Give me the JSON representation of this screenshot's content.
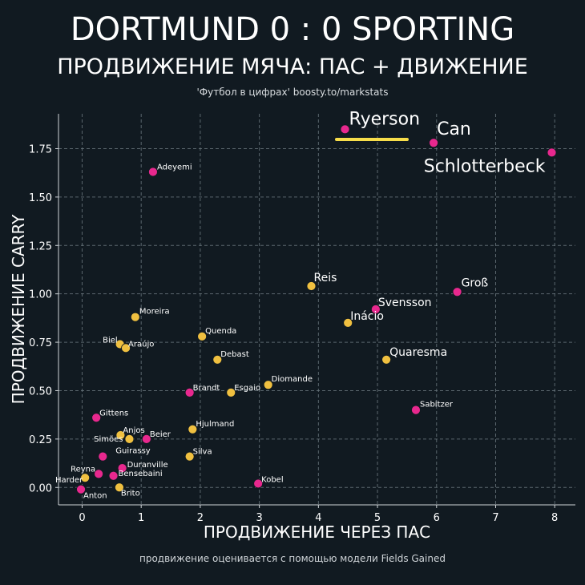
{
  "header": {
    "title": "DORTMUND 0 : 0 SPORTING",
    "subtitle": "ПРОДВИЖЕНИЕ МЯЧА: ПАС + ДВИЖЕНИЕ",
    "credit": "'Футбол в цифрах' boosty.to/markstats"
  },
  "footer": {
    "note": "продвижение оценивается с помощью модели Fields Gained"
  },
  "colors": {
    "background": "#111a21",
    "dortmund": "#f0c040",
    "sporting": "#e8288e",
    "grid": "#6d7a80",
    "highlight": "#f7dd4a"
  },
  "chart_data": {
    "type": "scatter",
    "xlabel": "ПРОДВИЖЕНИЕ ЧЕРЕЗ ПАС",
    "ylabel": "ПРОДВИЖЕНИЕ CARRY",
    "xlim": [
      -0.4,
      8.35
    ],
    "ylim": [
      -0.09,
      1.93
    ],
    "xticks": [
      0,
      1,
      2,
      3,
      4,
      5,
      6,
      7,
      8
    ],
    "yticks": [
      0.0,
      0.25,
      0.5,
      0.75,
      1.0,
      1.25,
      1.5,
      1.75
    ],
    "ytick_labels": [
      "0.00",
      "0.25",
      "0.50",
      "0.75",
      "1.00",
      "1.25",
      "1.50",
      "1.75"
    ],
    "grid": true,
    "points": [
      {
        "name": "Ryerson",
        "x": 4.45,
        "y": 1.85,
        "team": "sporting",
        "label_size": "large"
      },
      {
        "name": "Can",
        "x": 5.95,
        "y": 1.78,
        "team": "sporting",
        "label_size": "large"
      },
      {
        "name": "Schlotterbeck",
        "x": 7.95,
        "y": 1.73,
        "team": "sporting",
        "label_size": "large"
      },
      {
        "name": "Adeyemi",
        "x": 1.2,
        "y": 1.63,
        "team": "sporting",
        "label_size": "small"
      },
      {
        "name": "Reis",
        "x": 3.88,
        "y": 1.04,
        "team": "dortmund",
        "label_size": "medium"
      },
      {
        "name": "Groß",
        "x": 6.35,
        "y": 1.01,
        "team": "sporting",
        "label_size": "medium"
      },
      {
        "name": "Svensson",
        "x": 4.97,
        "y": 0.92,
        "team": "sporting",
        "label_size": "medium"
      },
      {
        "name": "Inácio",
        "x": 4.5,
        "y": 0.85,
        "team": "dortmund",
        "label_size": "medium"
      },
      {
        "name": "Quaresma",
        "x": 5.15,
        "y": 0.66,
        "team": "dortmund",
        "label_size": "medium"
      },
      {
        "name": "Sabitzer",
        "x": 5.65,
        "y": 0.4,
        "team": "sporting",
        "label_size": "small"
      },
      {
        "name": "Moreira",
        "x": 0.9,
        "y": 0.88,
        "team": "dortmund",
        "label_size": "small"
      },
      {
        "name": "Quenda",
        "x": 2.03,
        "y": 0.78,
        "team": "dortmund",
        "label_size": "small"
      },
      {
        "name": "Biel",
        "x": 0.64,
        "y": 0.74,
        "team": "dortmund",
        "label_size": "small"
      },
      {
        "name": "Araújo",
        "x": 0.74,
        "y": 0.72,
        "team": "dortmund",
        "label_size": "small"
      },
      {
        "name": "Debast",
        "x": 2.29,
        "y": 0.66,
        "team": "dortmund",
        "label_size": "small"
      },
      {
        "name": "Diomande",
        "x": 3.15,
        "y": 0.53,
        "team": "dortmund",
        "label_size": "small"
      },
      {
        "name": "Esgaio",
        "x": 2.52,
        "y": 0.49,
        "team": "dortmund",
        "label_size": "small"
      },
      {
        "name": "Brandt",
        "x": 1.82,
        "y": 0.49,
        "team": "sporting",
        "label_size": "small"
      },
      {
        "name": "Gittens",
        "x": 0.24,
        "y": 0.36,
        "team": "sporting",
        "label_size": "small"
      },
      {
        "name": "Hjulmand",
        "x": 1.87,
        "y": 0.3,
        "team": "dortmund",
        "label_size": "small"
      },
      {
        "name": "Anjos",
        "x": 0.65,
        "y": 0.27,
        "team": "dortmund",
        "label_size": "small"
      },
      {
        "name": "Simões",
        "x": 0.8,
        "y": 0.25,
        "team": "dortmund",
        "label_size": "small"
      },
      {
        "name": "Beier",
        "x": 1.09,
        "y": 0.25,
        "team": "sporting",
        "label_size": "small"
      },
      {
        "name": "Guirassy",
        "x": 0.35,
        "y": 0.16,
        "team": "sporting",
        "label_size": "small"
      },
      {
        "name": "Silva",
        "x": 1.82,
        "y": 0.16,
        "team": "dortmund",
        "label_size": "small"
      },
      {
        "name": "Duranville",
        "x": 0.68,
        "y": 0.1,
        "team": "sporting",
        "label_size": "small"
      },
      {
        "name": "Reyna",
        "x": 0.28,
        "y": 0.07,
        "team": "sporting",
        "label_size": "small"
      },
      {
        "name": "Bensebaini",
        "x": 0.53,
        "y": 0.06,
        "team": "sporting",
        "label_size": "small"
      },
      {
        "name": "Harder",
        "x": 0.05,
        "y": 0.05,
        "team": "dortmund",
        "label_size": "small"
      },
      {
        "name": "Kobel",
        "x": 2.98,
        "y": 0.02,
        "team": "sporting",
        "label_size": "small"
      },
      {
        "name": "Anton",
        "x": -0.02,
        "y": -0.01,
        "team": "sporting",
        "label_size": "small"
      },
      {
        "name": "Brito",
        "x": 0.63,
        "y": 0.0,
        "team": "dortmund",
        "label_size": "small"
      }
    ]
  }
}
